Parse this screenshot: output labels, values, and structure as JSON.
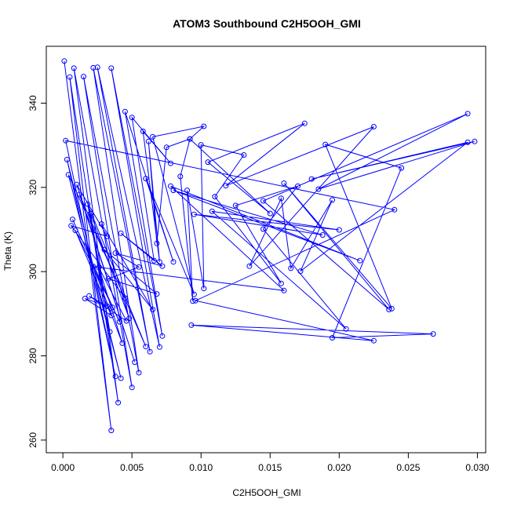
{
  "chart_data": {
    "type": "scatter",
    "title": "ATOM3 Southbound C2H5OOH_GMI",
    "xlabel": "C2H5OOH_GMI",
    "ylabel": "Theta (K)",
    "xlim": [
      -0.0012,
      0.0306
    ],
    "ylim": [
      257,
      353.5
    ],
    "xticks": [
      0.0,
      0.005,
      0.01,
      0.015,
      0.02,
      0.025,
      0.03
    ],
    "xtick_labels": [
      "0.000",
      "0.005",
      "0.010",
      "0.015",
      "0.020",
      "0.025",
      "0.030"
    ],
    "yticks": [
      260,
      280,
      300,
      320,
      340
    ],
    "ytick_labels": [
      "260",
      "280",
      "300",
      "320",
      "340"
    ],
    "grid": false,
    "color": "#0000ff",
    "series": [
      {
        "marker": "open-circle",
        "line": true,
        "x": [
          0.0001,
          0.0035,
          0.0005,
          0.004,
          0.0008,
          0.005,
          0.0015,
          0.0055,
          0.0022,
          0.0063,
          0.0025,
          0.007,
          0.0035,
          0.0072,
          0.0045,
          0.008,
          0.006,
          0.0095,
          0.0065,
          0.0102,
          0.0092,
          0.015,
          0.0105,
          0.0175,
          0.0118,
          0.0225,
          0.0135,
          0.0158,
          0.0165,
          0.0195,
          0.0172,
          0.0293,
          0.018,
          0.0298,
          0.0185,
          0.0293,
          0.0145,
          0.0236,
          0.016,
          0.0238,
          0.019,
          0.0245,
          0.0195,
          0.0268,
          0.0093,
          0.0225,
          0.0096,
          0.024,
          0.0002,
          0.0038,
          0.0003,
          0.0042,
          0.0004,
          0.0045,
          0.0006,
          0.0032,
          0.001,
          0.0052,
          0.0012,
          0.006,
          0.0018,
          0.0034,
          0.002,
          0.0048,
          0.0028,
          0.0065,
          0.003,
          0.0068,
          0.0033,
          0.0055,
          0.0038,
          0.0072,
          0.0042,
          0.0066,
          0.005,
          0.0078,
          0.0058,
          0.007,
          0.0062,
          0.0068,
          0.0075,
          0.0092,
          0.0085,
          0.0094,
          0.009,
          0.0102,
          0.01,
          0.0131,
          0.011,
          0.0158,
          0.0125,
          0.017,
          0.0145,
          0.0205,
          0.0108,
          0.02,
          0.0095,
          0.0188,
          0.008,
          0.0215,
          0.0078,
          0.016,
          0.0022,
          0.0043,
          0.0026,
          0.0046,
          0.0019,
          0.0032,
          0.0016,
          0.0035,
          0.0009,
          0.0041,
          0.0007,
          0.0036
        ],
        "y": [
          350.0,
          262.3,
          346.2,
          268.9,
          348.3,
          272.5,
          346.3,
          276.0,
          348.4,
          281.0,
          348.5,
          282.1,
          348.3,
          284.7,
          338.0,
          302.3,
          322.1,
          294.6,
          332.0,
          334.5,
          331.5,
          313.8,
          326.0,
          335.2,
          320.4,
          334.4,
          301.3,
          317.4,
          300.8,
          317.0,
          300.1,
          330.7,
          322.0,
          330.9,
          319.6,
          337.5,
          316.8,
          291.0,
          321.0,
          291.2,
          330.2,
          324.6,
          284.3,
          285.2,
          287.3,
          283.6,
          293.1,
          314.7,
          331.1,
          275.1,
          326.6,
          274.7,
          323.0,
          293.7,
          310.9,
          308.4,
          320.7,
          278.5,
          318.3,
          282.2,
          316.0,
          285.7,
          313.8,
          288.9,
          311.3,
          291.0,
          305.2,
          294.7,
          298.3,
          301.1,
          304.4,
          301.3,
          309.1,
          302.6,
          336.6,
          325.7,
          333.3,
          302.3,
          330.9,
          306.7,
          329.5,
          331.5,
          322.6,
          293.0,
          319.3,
          296.0,
          330.1,
          327.7,
          317.8,
          297.2,
          315.7,
          320.3,
          310.1,
          286.4,
          314.3,
          309.9,
          313.6,
          308.7,
          319.3,
          302.6,
          320.3,
          295.5,
          301.2,
          283.0,
          301.0,
          288.3,
          294.2,
          291.8,
          293.6,
          289.6,
          309.8,
          288.1,
          312.4,
          291.5
        ]
      }
    ]
  }
}
